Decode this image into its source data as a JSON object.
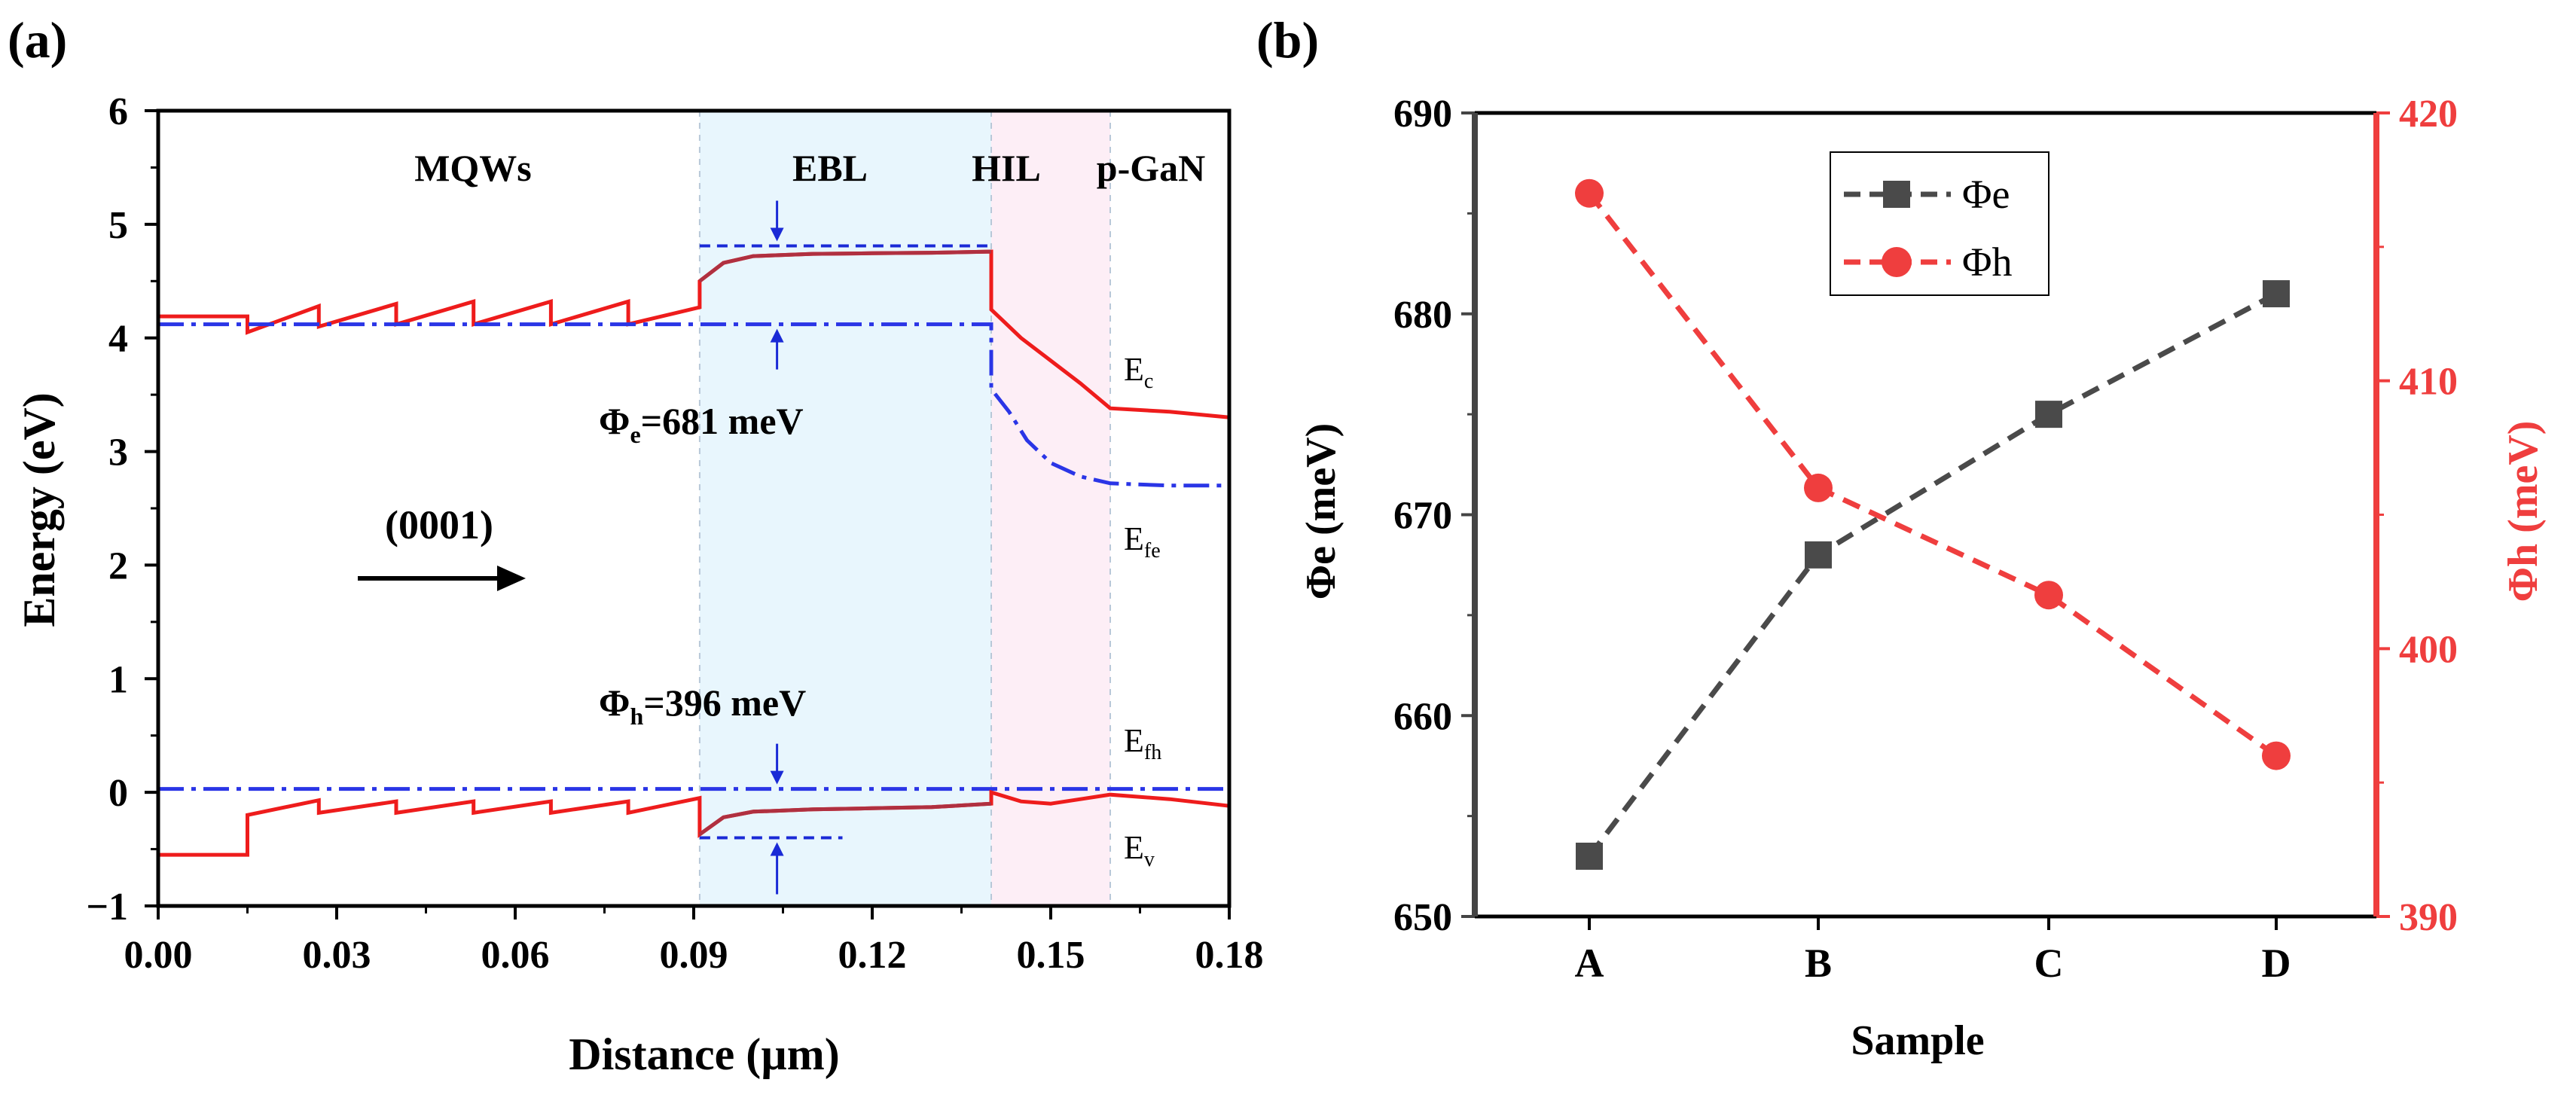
{
  "colors": {
    "red": "#ee1c1c",
    "blue": "#2a35e6",
    "dark": "#4a4a4a",
    "ebl_fill": "#e8f6fd",
    "hil_fill": "#fdeef6",
    "arrow_blue": "#1a2ad6",
    "curve_dark_red": "#b03040",
    "phi_h_red": "#ef3e3e"
  },
  "panel_a": {
    "label": "(a)",
    "xlabel": "Distance (µm)",
    "ylabel": "Energy (eV)",
    "region_labels": [
      "MQWs",
      "EBL",
      "HIL",
      "p-GaN"
    ],
    "direction_label": "(0001)",
    "phi_e": {
      "symbol": "Φ",
      "sub": "e",
      "text": "=681 meV"
    },
    "phi_h": {
      "symbol": "Φ",
      "sub": "h",
      "text": "=396 meV"
    },
    "curve_labels": [
      {
        "main": "E",
        "sub": "c"
      },
      {
        "main": "E",
        "sub": "fe"
      },
      {
        "main": "E",
        "sub": "fh"
      },
      {
        "main": "E",
        "sub": "v"
      }
    ]
  },
  "panel_b": {
    "label": "(b)"
  },
  "chart_data": [
    {
      "type": "line",
      "title": "(a)",
      "xlabel": "Distance (µm)",
      "ylabel": "Energy (eV)",
      "xlim": [
        0.0,
        0.18
      ],
      "ylim": [
        -1,
        6
      ],
      "xticks": [
        0.0,
        0.03,
        0.06,
        0.09,
        0.12,
        0.15,
        0.18
      ],
      "xtick_labels": [
        "0.00",
        "0.03",
        "0.06",
        "0.09",
        "0.12",
        "0.15",
        "0.18"
      ],
      "yticks": [
        -1,
        0,
        1,
        2,
        3,
        4,
        5,
        6
      ],
      "ytick_labels": [
        "−1",
        "0",
        "1",
        "2",
        "3",
        "4",
        "5",
        "6"
      ],
      "regions": [
        {
          "name": "MQWs",
          "x": [
            0.0,
            0.091
          ]
        },
        {
          "name": "EBL",
          "x": [
            0.091,
            0.14
          ]
        },
        {
          "name": "HIL",
          "x": [
            0.14,
            0.16
          ]
        },
        {
          "name": "p-GaN",
          "x": [
            0.16,
            0.18
          ]
        }
      ],
      "series": [
        {
          "name": "Ec",
          "x": [
            0.0,
            0.015,
            0.015,
            0.027,
            0.027,
            0.04,
            0.04,
            0.053,
            0.053,
            0.066,
            0.066,
            0.079,
            0.079,
            0.091,
            0.091,
            0.095,
            0.1,
            0.11,
            0.12,
            0.13,
            0.14,
            0.14,
            0.142,
            0.145,
            0.15,
            0.155,
            0.16,
            0.17,
            0.18
          ],
          "y": [
            4.19,
            4.19,
            4.05,
            4.28,
            4.1,
            4.3,
            4.12,
            4.32,
            4.12,
            4.32,
            4.12,
            4.32,
            4.12,
            4.27,
            4.5,
            4.66,
            4.72,
            4.74,
            4.745,
            4.75,
            4.76,
            4.25,
            4.15,
            4.0,
            3.8,
            3.6,
            3.38,
            3.35,
            3.3
          ]
        },
        {
          "name": "Efe",
          "x": [
            0.0,
            0.091,
            0.14,
            0.14,
            0.143,
            0.146,
            0.15,
            0.155,
            0.16,
            0.17,
            0.18
          ],
          "y": [
            4.12,
            4.12,
            4.12,
            3.55,
            3.35,
            3.1,
            2.9,
            2.78,
            2.72,
            2.7,
            2.7
          ]
        },
        {
          "name": "Efh",
          "x": [
            0.0,
            0.18
          ],
          "y": [
            0.03,
            0.03
          ]
        },
        {
          "name": "Ev",
          "x": [
            0.0,
            0.015,
            0.015,
            0.027,
            0.027,
            0.04,
            0.04,
            0.053,
            0.053,
            0.066,
            0.066,
            0.079,
            0.079,
            0.091,
            0.091,
            0.095,
            0.1,
            0.11,
            0.12,
            0.13,
            0.14,
            0.14,
            0.145,
            0.15,
            0.155,
            0.16,
            0.17,
            0.18
          ],
          "y": [
            -0.55,
            -0.55,
            -0.2,
            -0.07,
            -0.18,
            -0.08,
            -0.18,
            -0.08,
            -0.18,
            -0.08,
            -0.18,
            -0.08,
            -0.18,
            -0.05,
            -0.37,
            -0.22,
            -0.17,
            -0.15,
            -0.14,
            -0.13,
            -0.1,
            0.0,
            -0.08,
            -0.1,
            -0.06,
            -0.02,
            -0.06,
            -0.12
          ]
        }
      ],
      "annotations": {
        "phi_e_top_y": 4.81,
        "phi_e_bottom_y": 4.12,
        "phi_e_x": [
          0.091,
          0.14
        ],
        "phi_e_arrow_x": 0.104,
        "phi_h_top_y": 0.03,
        "phi_h_bottom_y": -0.4,
        "phi_h_x": [
          0.091,
          0.115
        ],
        "phi_h_arrow_x": 0.104
      }
    },
    {
      "type": "line",
      "title": "(b)",
      "xlabel": "Sample",
      "ylabel": "Φe (meV)",
      "y2label": "Φh (meV)",
      "categories": [
        "A",
        "B",
        "C",
        "D"
      ],
      "ylim": [
        650,
        690
      ],
      "y2lim": [
        390,
        420
      ],
      "yticks": [
        650,
        660,
        670,
        680,
        690
      ],
      "y2ticks": [
        390,
        400,
        410,
        420
      ],
      "legend": "top-center",
      "series": [
        {
          "name": "Φe",
          "axis": "left",
          "marker": "square",
          "values": [
            653,
            668,
            675,
            681
          ]
        },
        {
          "name": "Φh",
          "axis": "right",
          "marker": "circle",
          "values": [
            417,
            406,
            402,
            396
          ]
        }
      ]
    }
  ]
}
